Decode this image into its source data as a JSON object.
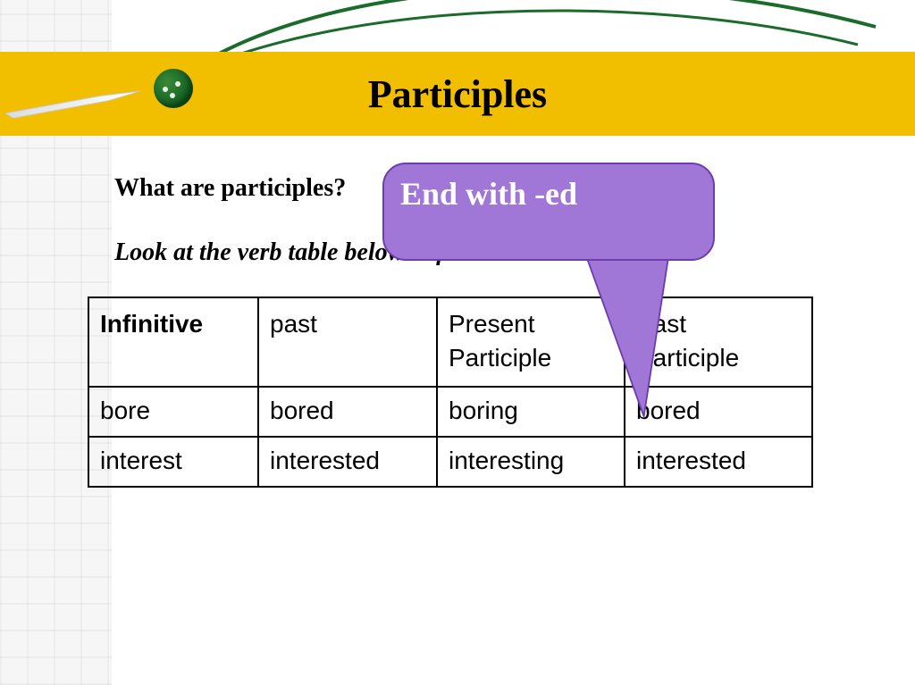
{
  "title": "Participles",
  "question": "What are participles?",
  "instruction": "Look at the verb table below to find out the answers.",
  "callout": {
    "text": "End with -ed",
    "bg_color": "#a076d6",
    "border_color": "#6d3db0",
    "text_color": "#ffffff",
    "fontsize": 36
  },
  "band_color": "#f2bf00",
  "swoosh_color": "#1b6b2a",
  "table": {
    "columns": [
      "Infinitive",
      "past",
      "Present Participle",
      "Past Participle"
    ],
    "rows": [
      [
        "bore",
        "bored",
        "boring",
        "bored"
      ],
      [
        "interest",
        "interested",
        "interesting",
        "interested"
      ]
    ],
    "border_color": "#000000",
    "header_font": "Arial",
    "cell_font": "Arial",
    "fontsize": 28
  },
  "colors": {
    "background": "#ffffff",
    "pattern": "#f0f0f0"
  }
}
